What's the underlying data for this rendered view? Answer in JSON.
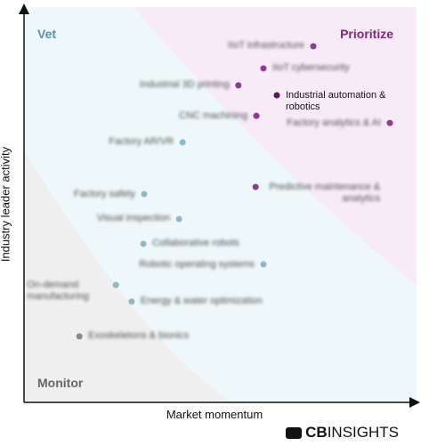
{
  "chart_data": {
    "type": "scatter",
    "xlabel": "Market momentum",
    "ylabel": "Industry leader activity",
    "annotations": [
      "Vet",
      "Prioritize",
      "Monitor"
    ],
    "annotation_colors": [
      "#5b8fa8",
      "#7b2a7f",
      "#666666"
    ],
    "xlim": [
      0,
      100
    ],
    "ylim": [
      0,
      100
    ],
    "points": [
      {
        "label": "IIoT infrastructure",
        "x": 73.7,
        "y": 90.1,
        "color": "#8e3b93"
      },
      {
        "label": "IIoT cybersecurity",
        "x": 61,
        "y": 84.5,
        "color": "#8e3b93"
      },
      {
        "label": "Industrial 3D printing",
        "x": 54.6,
        "y": 80.2,
        "color": "#8e3b93"
      },
      {
        "label": "Industrial automation & robotics",
        "x": 64.4,
        "y": 77.7,
        "color": "#5c1663"
      },
      {
        "label": "CNC machining",
        "x": 59.2,
        "y": 72.5,
        "color": "#8e3b93"
      },
      {
        "label": "Factory analytics & AI",
        "x": 93.2,
        "y": 70.7,
        "color": "#8e3b93"
      },
      {
        "label": "Factory AR/VR",
        "x": 40.4,
        "y": 65.8,
        "color": "#8fb8cb"
      },
      {
        "label": "Predictive maintenance & analytics",
        "x": 59,
        "y": 54.5,
        "color": "#8e3b93"
      },
      {
        "label": "Factory safety",
        "x": 30.6,
        "y": 52.7,
        "color": "#8fb8cb"
      },
      {
        "label": "Visual inspection",
        "x": 39.5,
        "y": 46.4,
        "color": "#8fb8cb"
      },
      {
        "label": "Collaborative robots",
        "x": 30.4,
        "y": 40.1,
        "color": "#8fb8cb"
      },
      {
        "label": "Robotic operating systems",
        "x": 61,
        "y": 34.9,
        "color": "#8fb8cb"
      },
      {
        "label": "On-demand manufacturing",
        "x": 23.4,
        "y": 29.7,
        "color": "#8fb8cb"
      },
      {
        "label": "Energy & water optimization",
        "x": 27.4,
        "y": 25.5,
        "color": "#8fb8cb"
      },
      {
        "label": "Exoskeletons & bionics",
        "x": 14.1,
        "y": 16.7,
        "color": "#8a8a8a"
      }
    ],
    "logo": {
      "bold": "CB",
      "light": "INSIGHTS"
    }
  }
}
